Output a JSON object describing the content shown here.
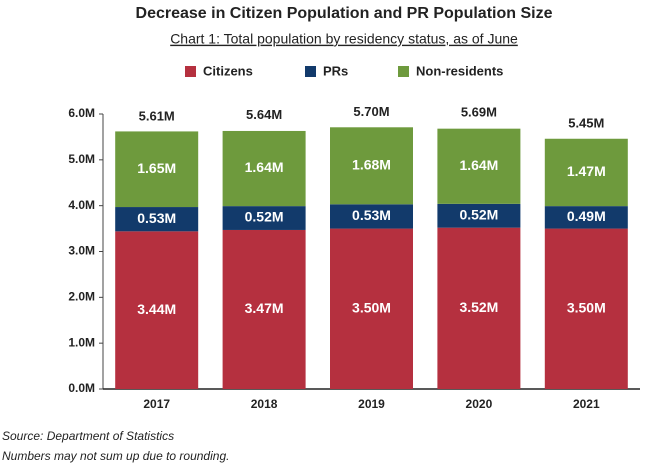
{
  "chart_data": {
    "type": "stacked_bar",
    "title": "Decrease in Citizen Population and PR Population Size",
    "subtitle": "Chart 1: Total population by residency status, as of June",
    "categories": [
      "2017",
      "2018",
      "2019",
      "2020",
      "2021"
    ],
    "series": [
      {
        "name": "Citizens",
        "color": "#b5303f",
        "values": [
          3.44,
          3.47,
          3.5,
          3.52,
          3.5
        ],
        "value_labels": [
          "3.44M",
          "3.47M",
          "3.50M",
          "3.52M",
          "3.50M"
        ]
      },
      {
        "name": "PRs",
        "color": "#123a6b",
        "values": [
          0.53,
          0.52,
          0.53,
          0.52,
          0.49
        ],
        "value_labels": [
          "0.53M",
          "0.52M",
          "0.53M",
          "0.52M",
          "0.49M"
        ]
      },
      {
        "name": "Non-residents",
        "color": "#6e9a3d",
        "values": [
          1.65,
          1.64,
          1.68,
          1.64,
          1.47
        ],
        "value_labels": [
          "1.65M",
          "1.64M",
          "1.68M",
          "1.64M",
          "1.47M"
        ]
      }
    ],
    "totals": {
      "values": [
        5.61,
        5.64,
        5.7,
        5.69,
        5.45
      ],
      "labels": [
        "5.61M",
        "5.64M",
        "5.70M",
        "5.69M",
        "5.45M"
      ]
    },
    "ylim": [
      0,
      6
    ],
    "yticks": [
      {
        "value": 0,
        "label": "0.0M"
      },
      {
        "value": 1,
        "label": "1.0M"
      },
      {
        "value": 2,
        "label": "2.0M"
      },
      {
        "value": 3,
        "label": "3.0M"
      },
      {
        "value": 4,
        "label": "4.0M"
      },
      {
        "value": 5,
        "label": "5.0M"
      },
      {
        "value": 6,
        "label": "6.0M"
      }
    ],
    "legend": "top",
    "source": "Source: Department of Statistics",
    "note": "Numbers may not sum up due to rounding."
  }
}
